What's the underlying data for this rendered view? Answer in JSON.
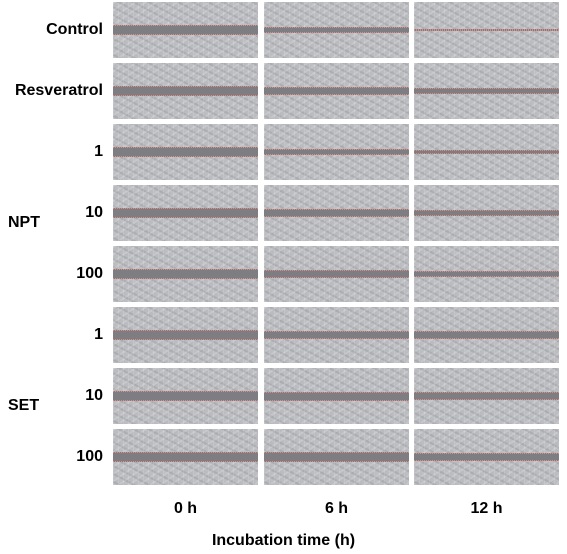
{
  "figure": {
    "rows": [
      {
        "label": "Control",
        "gaps": [
          1.0,
          0.55,
          0.2
        ]
      },
      {
        "label": "Resveratrol",
        "gaps": [
          1.0,
          0.8,
          0.65
        ]
      },
      {
        "label": "1",
        "gaps": [
          1.0,
          0.6,
          0.45
        ]
      },
      {
        "label": "10",
        "gaps": [
          1.0,
          0.75,
          0.55
        ]
      },
      {
        "label": "100",
        "gaps": [
          1.0,
          0.85,
          0.6
        ]
      },
      {
        "label": "1",
        "gaps": [
          1.0,
          0.85,
          0.75
        ]
      },
      {
        "label": "10",
        "gaps": [
          1.0,
          0.9,
          0.8
        ]
      },
      {
        "label": "100",
        "gaps": [
          1.0,
          0.95,
          0.85
        ]
      }
    ],
    "groups": [
      {
        "label": "NPT"
      },
      {
        "label": "SET"
      }
    ],
    "columns": [
      "0 h",
      "6 h",
      "12 h"
    ],
    "x_title": "Incubation time (h)",
    "colors": {
      "tissue": "#c2c4c8",
      "wound_gap": "#7d7d82",
      "wound_edge": "#e08a84"
    }
  }
}
